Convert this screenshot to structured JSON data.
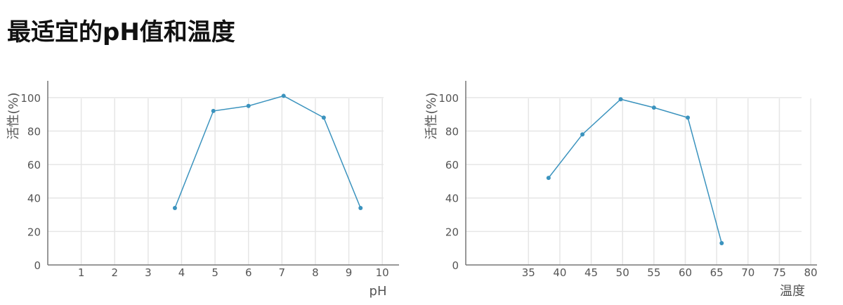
{
  "page": {
    "title": "最适宜的pH值和温度"
  },
  "colors": {
    "series": "#3b93be",
    "grid": "#e6e6e6",
    "axis": "#777777",
    "text": "#555555"
  },
  "chart_data": [
    {
      "type": "line",
      "title": "",
      "xlabel": "pH",
      "ylabel": "活性(%)",
      "xlim": [
        0,
        10.5
      ],
      "ylim": [
        0,
        110
      ],
      "xticks": [
        1,
        2,
        3,
        4,
        5,
        6,
        7,
        8,
        9,
        10
      ],
      "yticks": [
        0,
        20,
        40,
        60,
        80,
        100
      ],
      "grid": true,
      "series": [
        {
          "x": [
            3.8,
            4.95,
            6.0,
            7.05,
            8.25,
            9.35
          ],
          "y": [
            34,
            92,
            95,
            101,
            88,
            34
          ]
        }
      ]
    },
    {
      "type": "line",
      "title": "",
      "xlabel": "温度",
      "ylabel": "活性(%)",
      "xlim": [
        25,
        81
      ],
      "ylim": [
        0,
        110
      ],
      "xticks": [
        35,
        40,
        45,
        50,
        55,
        60,
        65,
        70,
        75,
        80
      ],
      "yticks": [
        0,
        20,
        40,
        60,
        80,
        100
      ],
      "grid": true,
      "series": [
        {
          "x": [
            38.2,
            43.6,
            49.7,
            55,
            60.4,
            65.8
          ],
          "y": [
            52,
            78,
            99,
            94,
            88,
            13
          ]
        }
      ]
    }
  ]
}
